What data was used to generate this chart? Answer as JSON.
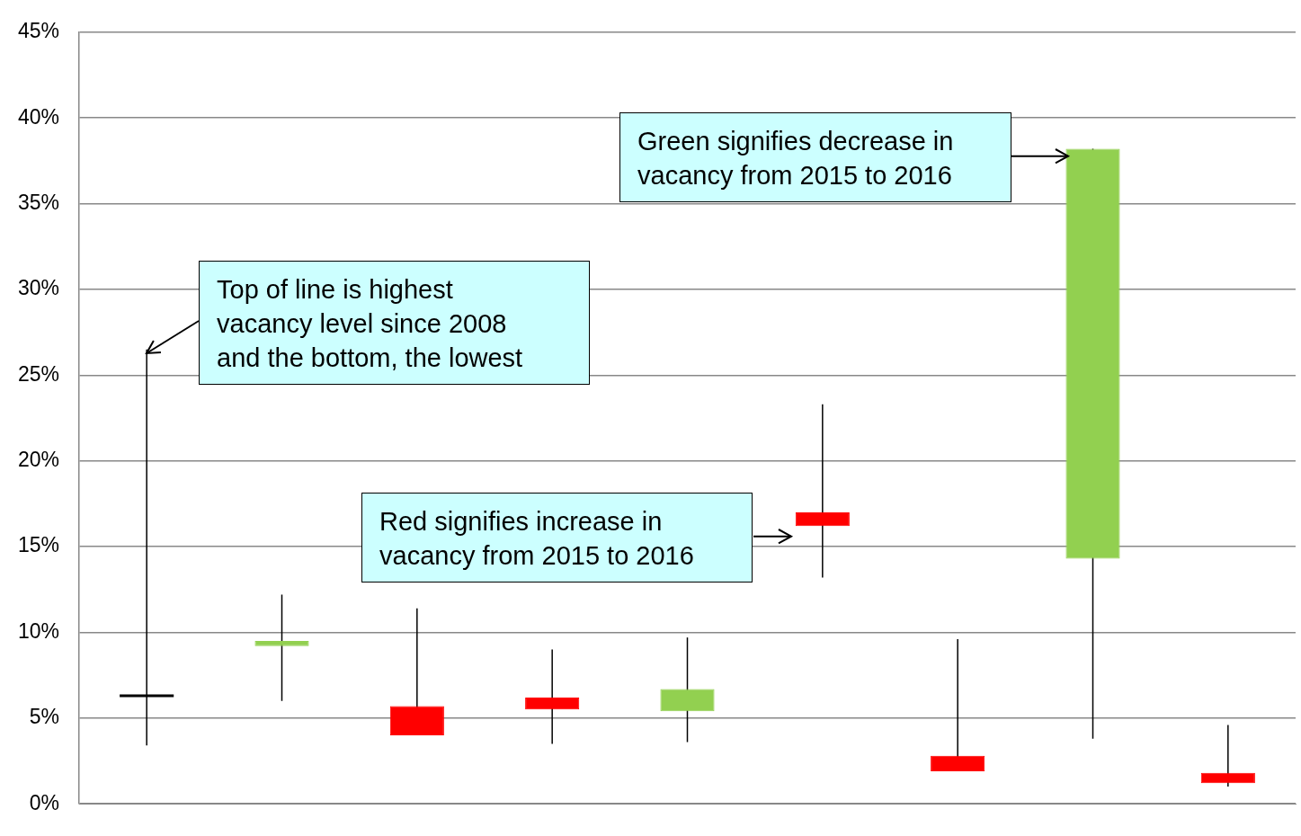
{
  "chart_data": {
    "type": "candlestick",
    "categories": [
      null,
      null,
      null,
      null,
      null,
      null,
      null,
      null,
      null
    ],
    "ohlc": [
      [
        6.3,
        26.5,
        3.4,
        6.3
      ],
      [
        9.5,
        12.2,
        6.0,
        9.2
      ],
      [
        4.0,
        11.4,
        4.0,
        5.7
      ],
      [
        5.5,
        9.0,
        3.5,
        6.2
      ],
      [
        6.7,
        9.7,
        3.6,
        5.4
      ],
      [
        16.2,
        23.3,
        13.2,
        17.0
      ],
      [
        1.9,
        9.6,
        1.9,
        2.8
      ],
      [
        38.2,
        38.2,
        3.8,
        14.3
      ],
      [
        1.2,
        4.6,
        1.0,
        1.8
      ]
    ],
    "colors": [
      "#000000",
      "#92d050",
      "#ff0000",
      "#ff0000",
      "#92d050",
      "#ff0000",
      "#ff0000",
      "#92d050",
      "#ff0000"
    ],
    "ylim": [
      0,
      45
    ],
    "yticks": [
      {
        "value": 0,
        "label": "0%"
      },
      {
        "value": 5,
        "label": "5%"
      },
      {
        "value": 10,
        "label": "10%"
      },
      {
        "value": 15,
        "label": "15%"
      },
      {
        "value": 20,
        "label": "20%"
      },
      {
        "value": 25,
        "label": "25%"
      },
      {
        "value": 30,
        "label": "30%"
      },
      {
        "value": 35,
        "label": "35%"
      },
      {
        "value": 40,
        "label": "40%"
      },
      {
        "value": 45,
        "label": "45%"
      }
    ],
    "grid": "y",
    "legend": false,
    "annotations": [
      "Top of line is highest vacancy level since 2008 and the bottom, the lowest",
      "Red signifies increase in vacancy from 2015 to 2016",
      "Green signifies decrease in vacancy from 2015 to 2016"
    ]
  }
}
